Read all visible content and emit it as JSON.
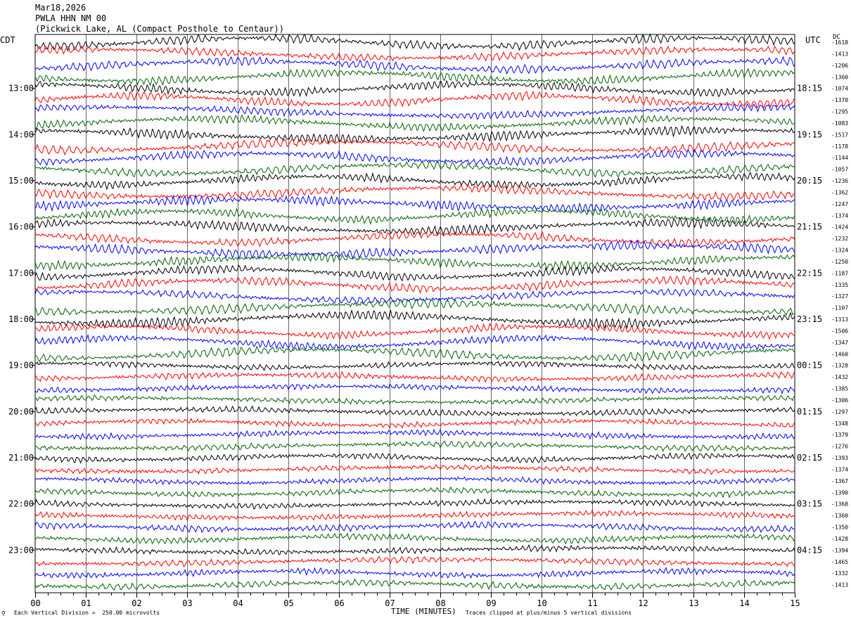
{
  "header": {
    "date": "Mar18,2026",
    "station": "PWLA HHN NM 00",
    "location": "(Pickwick Lake, AL (Compact Posthole to Centaur))"
  },
  "left_tz": "CDT",
  "right_tz": "UTC",
  "dc_label": "DC",
  "footer": {
    "scale_note": "Each Vertical Division =  250.00 microvolts",
    "xlabel": "TIME (MINUTES)",
    "clip_note": "Traces clipped at plus/minus 5 vertical divisions"
  },
  "chart_data": {
    "type": "line",
    "title": "PWLA HHN NM 00",
    "xlabel": "TIME (MINUTES)",
    "ylabel": "",
    "xlim": [
      0,
      15
    ],
    "x_ticks": [
      "00",
      "01",
      "02",
      "03",
      "04",
      "05",
      "06",
      "07",
      "08",
      "09",
      "10",
      "11",
      "12",
      "13",
      "14",
      "15"
    ],
    "left_hour_labels": [
      "13:00",
      "14:00",
      "15:00",
      "16:00",
      "17:00",
      "18:00",
      "19:00",
      "20:00",
      "21:00",
      "22:00",
      "23:00"
    ],
    "right_hour_labels": [
      "18:15",
      "19:15",
      "20:15",
      "21:15",
      "22:15",
      "23:15",
      "00:15",
      "01:15",
      "02:15",
      "03:15",
      "04:15"
    ],
    "dc_offsets": [
      -1618,
      -1413,
      -1206,
      -1360,
      -1074,
      -1370,
      -1295,
      -1083,
      -1517,
      -1178,
      -1144,
      -1057,
      -1236,
      -1362,
      -1247,
      -1374,
      -1424,
      -1232,
      -1324,
      -1250,
      -1187,
      -1335,
      -1327,
      -1107,
      -1313,
      -1506,
      -1347,
      -1460,
      -1328,
      -1432,
      -1385,
      -1306,
      -1297,
      -1348,
      -1379,
      -1276,
      -1393,
      -1374,
      -1367,
      -1390,
      -1368,
      -1360,
      -1350,
      -1428,
      -1394,
      -1465,
      -1332,
      -1413
    ],
    "trace_colors": [
      "#000000",
      "#ff0000",
      "#0000ff",
      "#006400"
    ],
    "grid": true
  }
}
